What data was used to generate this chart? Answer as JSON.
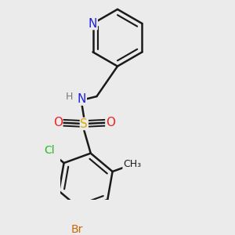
{
  "background_color": "#ebebeb",
  "bond_color": "#1a1a1a",
  "bond_width": 1.8,
  "atom_colors": {
    "N": "#2020dd",
    "S": "#ddaa00",
    "O": "#ee2222",
    "Cl": "#22bb22",
    "Br": "#cc6600",
    "C": "#1a1a1a",
    "H": "#777777"
  },
  "font_size": 10,
  "fig_size": [
    3.0,
    3.0
  ],
  "dpi": 100
}
